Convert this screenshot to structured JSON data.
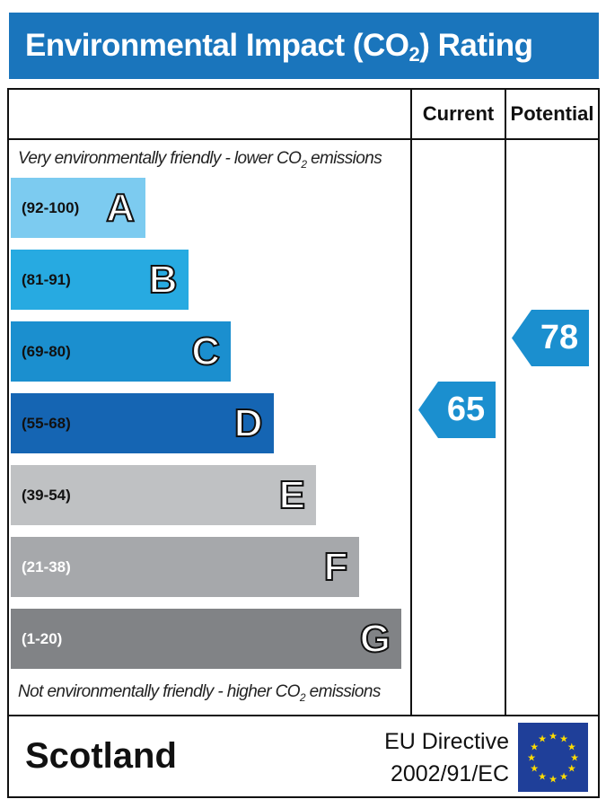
{
  "header": {
    "title_pre": "Environmental Impact (CO",
    "title_sub": "2",
    "title_post": ") Rating"
  },
  "columns": {
    "current": "Current",
    "potential": "Potential"
  },
  "notes": {
    "top_pre": "Very environmentally friendly - lower CO",
    "top_sub": "2",
    "top_post": " emissions",
    "bottom_pre": "Not environmentally friendly - higher CO",
    "bottom_sub": "2",
    "bottom_post": " emissions"
  },
  "footer": {
    "region": "Scotland",
    "directive_line1": "EU Directive",
    "directive_line2": "2002/91/EC",
    "flag_icon": "eu-flag-icon"
  },
  "chart_data": {
    "type": "bar",
    "title": "Environmental Impact (CO2) Rating",
    "bands": [
      {
        "letter": "A",
        "range": "(92-100)",
        "color": "#7ccbf0",
        "text_color": "#111"
      },
      {
        "letter": "B",
        "range": "(81-91)",
        "color": "#27aae1",
        "text_color": "#111"
      },
      {
        "letter": "C",
        "range": "(69-80)",
        "color": "#1b8fcf",
        "text_color": "#111"
      },
      {
        "letter": "D",
        "range": "(55-68)",
        "color": "#1565b3",
        "text_color": "#111"
      },
      {
        "letter": "E",
        "range": "(39-54)",
        "color": "#bfc1c3",
        "text_color": "#111"
      },
      {
        "letter": "F",
        "range": "(21-38)",
        "color": "#a6a8ab",
        "text_color": "#fff"
      },
      {
        "letter": "G",
        "range": "(1-20)",
        "color": "#818386",
        "text_color": "#fff"
      }
    ],
    "current": {
      "value": 65,
      "band": "D",
      "color": "#1b8fcf"
    },
    "potential": {
      "value": 78,
      "band": "C",
      "color": "#1b8fcf"
    }
  }
}
